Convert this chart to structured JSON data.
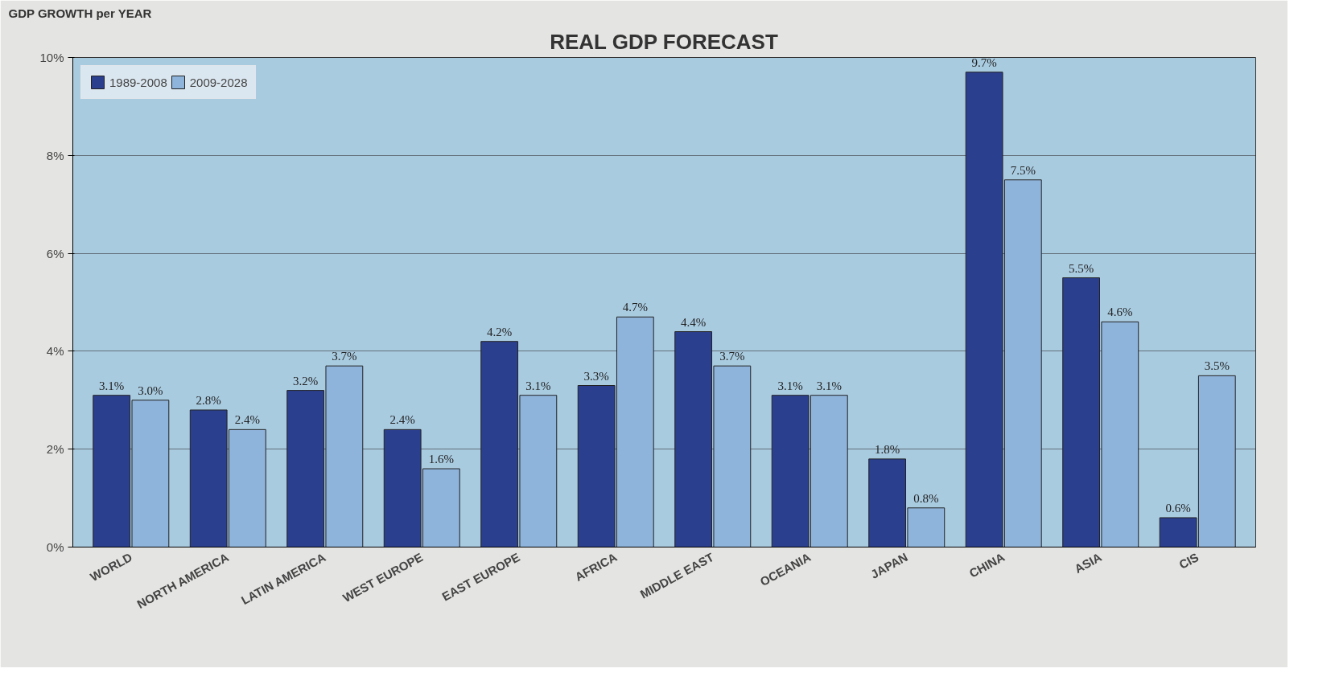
{
  "chart_data": {
    "type": "bar",
    "title": "REAL GDP FORECAST",
    "ylabel": "GDP GROWTH per YEAR",
    "categories": [
      "WORLD",
      "NORTH AMERICA",
      "LATIN AMERICA",
      "WEST EUROPE",
      "EAST EUROPE",
      "AFRICA",
      "MIDDLE EAST",
      "OCEANIA",
      "JAPAN",
      "CHINA",
      "ASIA",
      "CIS"
    ],
    "series": [
      {
        "name": "1989-2008",
        "color": "#2b3f8f",
        "values": [
          3.1,
          2.8,
          3.2,
          2.4,
          4.2,
          3.3,
          4.4,
          3.1,
          1.8,
          9.7,
          5.5,
          0.6
        ],
        "value_labels": [
          "3.1%",
          "2.8%",
          "3.2%",
          "2.4%",
          "4.2%",
          "3.3%",
          "4.4%",
          "3.1%",
          "1.8%",
          "9.7%",
          "5.5%",
          "0.6%"
        ]
      },
      {
        "name": "2009-2028",
        "color": "#8fb4dc",
        "values": [
          3.0,
          2.4,
          3.7,
          1.6,
          3.1,
          4.7,
          3.7,
          3.1,
          0.8,
          7.5,
          4.6,
          3.5
        ],
        "value_labels": [
          "3.0%",
          "2.4%",
          "3.7%",
          "1.6%",
          "3.1%",
          "4.7%",
          "3.7%",
          "3.1%",
          "0.8%",
          "7.5%",
          "4.6%",
          "3.5%"
        ]
      }
    ],
    "ylim": [
      0,
      10
    ],
    "yticks": [
      {
        "value": 0,
        "label": "0%"
      },
      {
        "value": 2,
        "label": "2%"
      },
      {
        "value": 4,
        "label": "4%"
      },
      {
        "value": 6,
        "label": "6%"
      },
      {
        "value": 8,
        "label": "8%"
      },
      {
        "value": 10,
        "label": "10%"
      }
    ],
    "grid": "y",
    "legend": "top left"
  }
}
